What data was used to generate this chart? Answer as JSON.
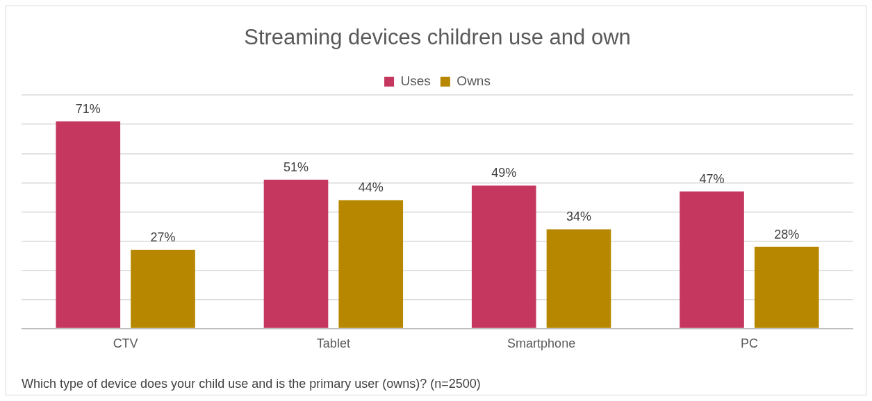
{
  "chart_data": {
    "type": "bar",
    "title": "Streaming devices children use and own",
    "categories": [
      "CTV",
      "Tablet",
      "Smartphone",
      "PC"
    ],
    "series": [
      {
        "name": "Uses",
        "color": "#c5375f",
        "values": [
          71,
          51,
          49,
          47
        ],
        "value_labels": [
          "71%",
          "51%",
          "49%",
          "47%"
        ]
      },
      {
        "name": "Owns",
        "color": "#b78700",
        "values": [
          27,
          44,
          34,
          28
        ],
        "value_labels": [
          "27%",
          "44%",
          "34%",
          "28%"
        ]
      }
    ],
    "ylim": [
      0,
      80
    ],
    "yticks": [
      {
        "value": 0,
        "label": null
      },
      {
        "value": 10,
        "label": null
      },
      {
        "value": 20,
        "label": null
      },
      {
        "value": 30,
        "label": null
      },
      {
        "value": 40,
        "label": null
      },
      {
        "value": 50,
        "label": null
      },
      {
        "value": 60,
        "label": null
      },
      {
        "value": 70,
        "label": null
      },
      {
        "value": 80,
        "label": null
      }
    ],
    "tick_labels": "x",
    "grid": "y",
    "legend": "top",
    "annotations": [
      "Which type of device does your child use and is the primary user (owns)? (n=2500)"
    ]
  }
}
